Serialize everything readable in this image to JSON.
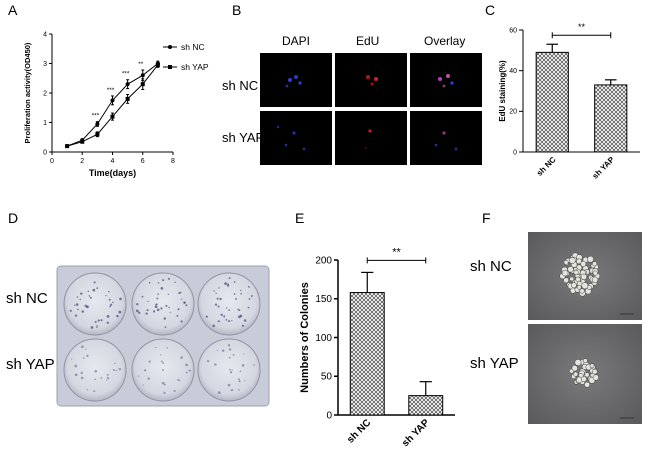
{
  "panels": {
    "A": "A",
    "B": "B",
    "C": "C",
    "D": "D",
    "E": "E",
    "F": "F"
  },
  "colors": {
    "hatch": "#888888",
    "dapi": "#3040d0",
    "edu": "#d02020",
    "plate": "#c8ccd8",
    "colony": "#dcdcd6"
  },
  "chart_data": [
    {
      "type": "line",
      "panel": "A",
      "xlabel": "Time(days)",
      "ylabel": "Proliferation activity(OD450)",
      "xlim": [
        0,
        8
      ],
      "ylim": [
        0,
        4
      ],
      "xticks": [
        "0",
        "2",
        "4",
        "6",
        "8"
      ],
      "yticks": [
        "0",
        "1",
        "2",
        "3",
        "4"
      ],
      "series": [
        {
          "name": "sh NC",
          "marker": "circle",
          "x": [
            1,
            2,
            3,
            4,
            5,
            6,
            7
          ],
          "y": [
            0.2,
            0.4,
            0.95,
            1.75,
            2.3,
            2.6,
            3.0
          ],
          "err": [
            0.03,
            0.05,
            0.08,
            0.15,
            0.15,
            0.18,
            0.08
          ]
        },
        {
          "name": "sh YAP",
          "marker": "square",
          "x": [
            1,
            2,
            3,
            4,
            5,
            6,
            7
          ],
          "y": [
            0.2,
            0.35,
            0.6,
            1.2,
            1.8,
            2.3,
            2.95
          ],
          "err": [
            0.03,
            0.05,
            0.08,
            0.12,
            0.15,
            0.18,
            0.08
          ]
        }
      ],
      "annotations": [
        {
          "x": 3,
          "text": "***"
        },
        {
          "x": 4,
          "text": "***"
        },
        {
          "x": 5,
          "text": "***"
        },
        {
          "x": 6,
          "text": "**"
        }
      ]
    },
    {
      "type": "bar",
      "panel": "C",
      "ylabel": "EdU staining(%)",
      "categories": [
        "sh NC",
        "sh YAP"
      ],
      "values": [
        49,
        33
      ],
      "err": [
        4,
        2.5
      ],
      "ylim": [
        0,
        60
      ],
      "yticks": [
        "0",
        "20",
        "40",
        "60"
      ],
      "significance": "**"
    },
    {
      "type": "bar",
      "panel": "E",
      "ylabel": "Numbers of Colonies",
      "categories": [
        "sh NC",
        "sh YAP"
      ],
      "values": [
        158,
        25
      ],
      "err": [
        26,
        18
      ],
      "ylim": [
        0,
        200
      ],
      "yticks": [
        "0",
        "50",
        "100",
        "150",
        "200"
      ],
      "significance": "**"
    }
  ],
  "panelB": {
    "columns": [
      "DAPI",
      "EdU",
      "Overlay"
    ],
    "rows": [
      "sh NC",
      "sh YAP"
    ]
  },
  "panelD": {
    "rows": [
      "sh NC",
      "sh YAP"
    ]
  },
  "panelF": {
    "rows": [
      "sh NC",
      "sh YAP"
    ]
  }
}
